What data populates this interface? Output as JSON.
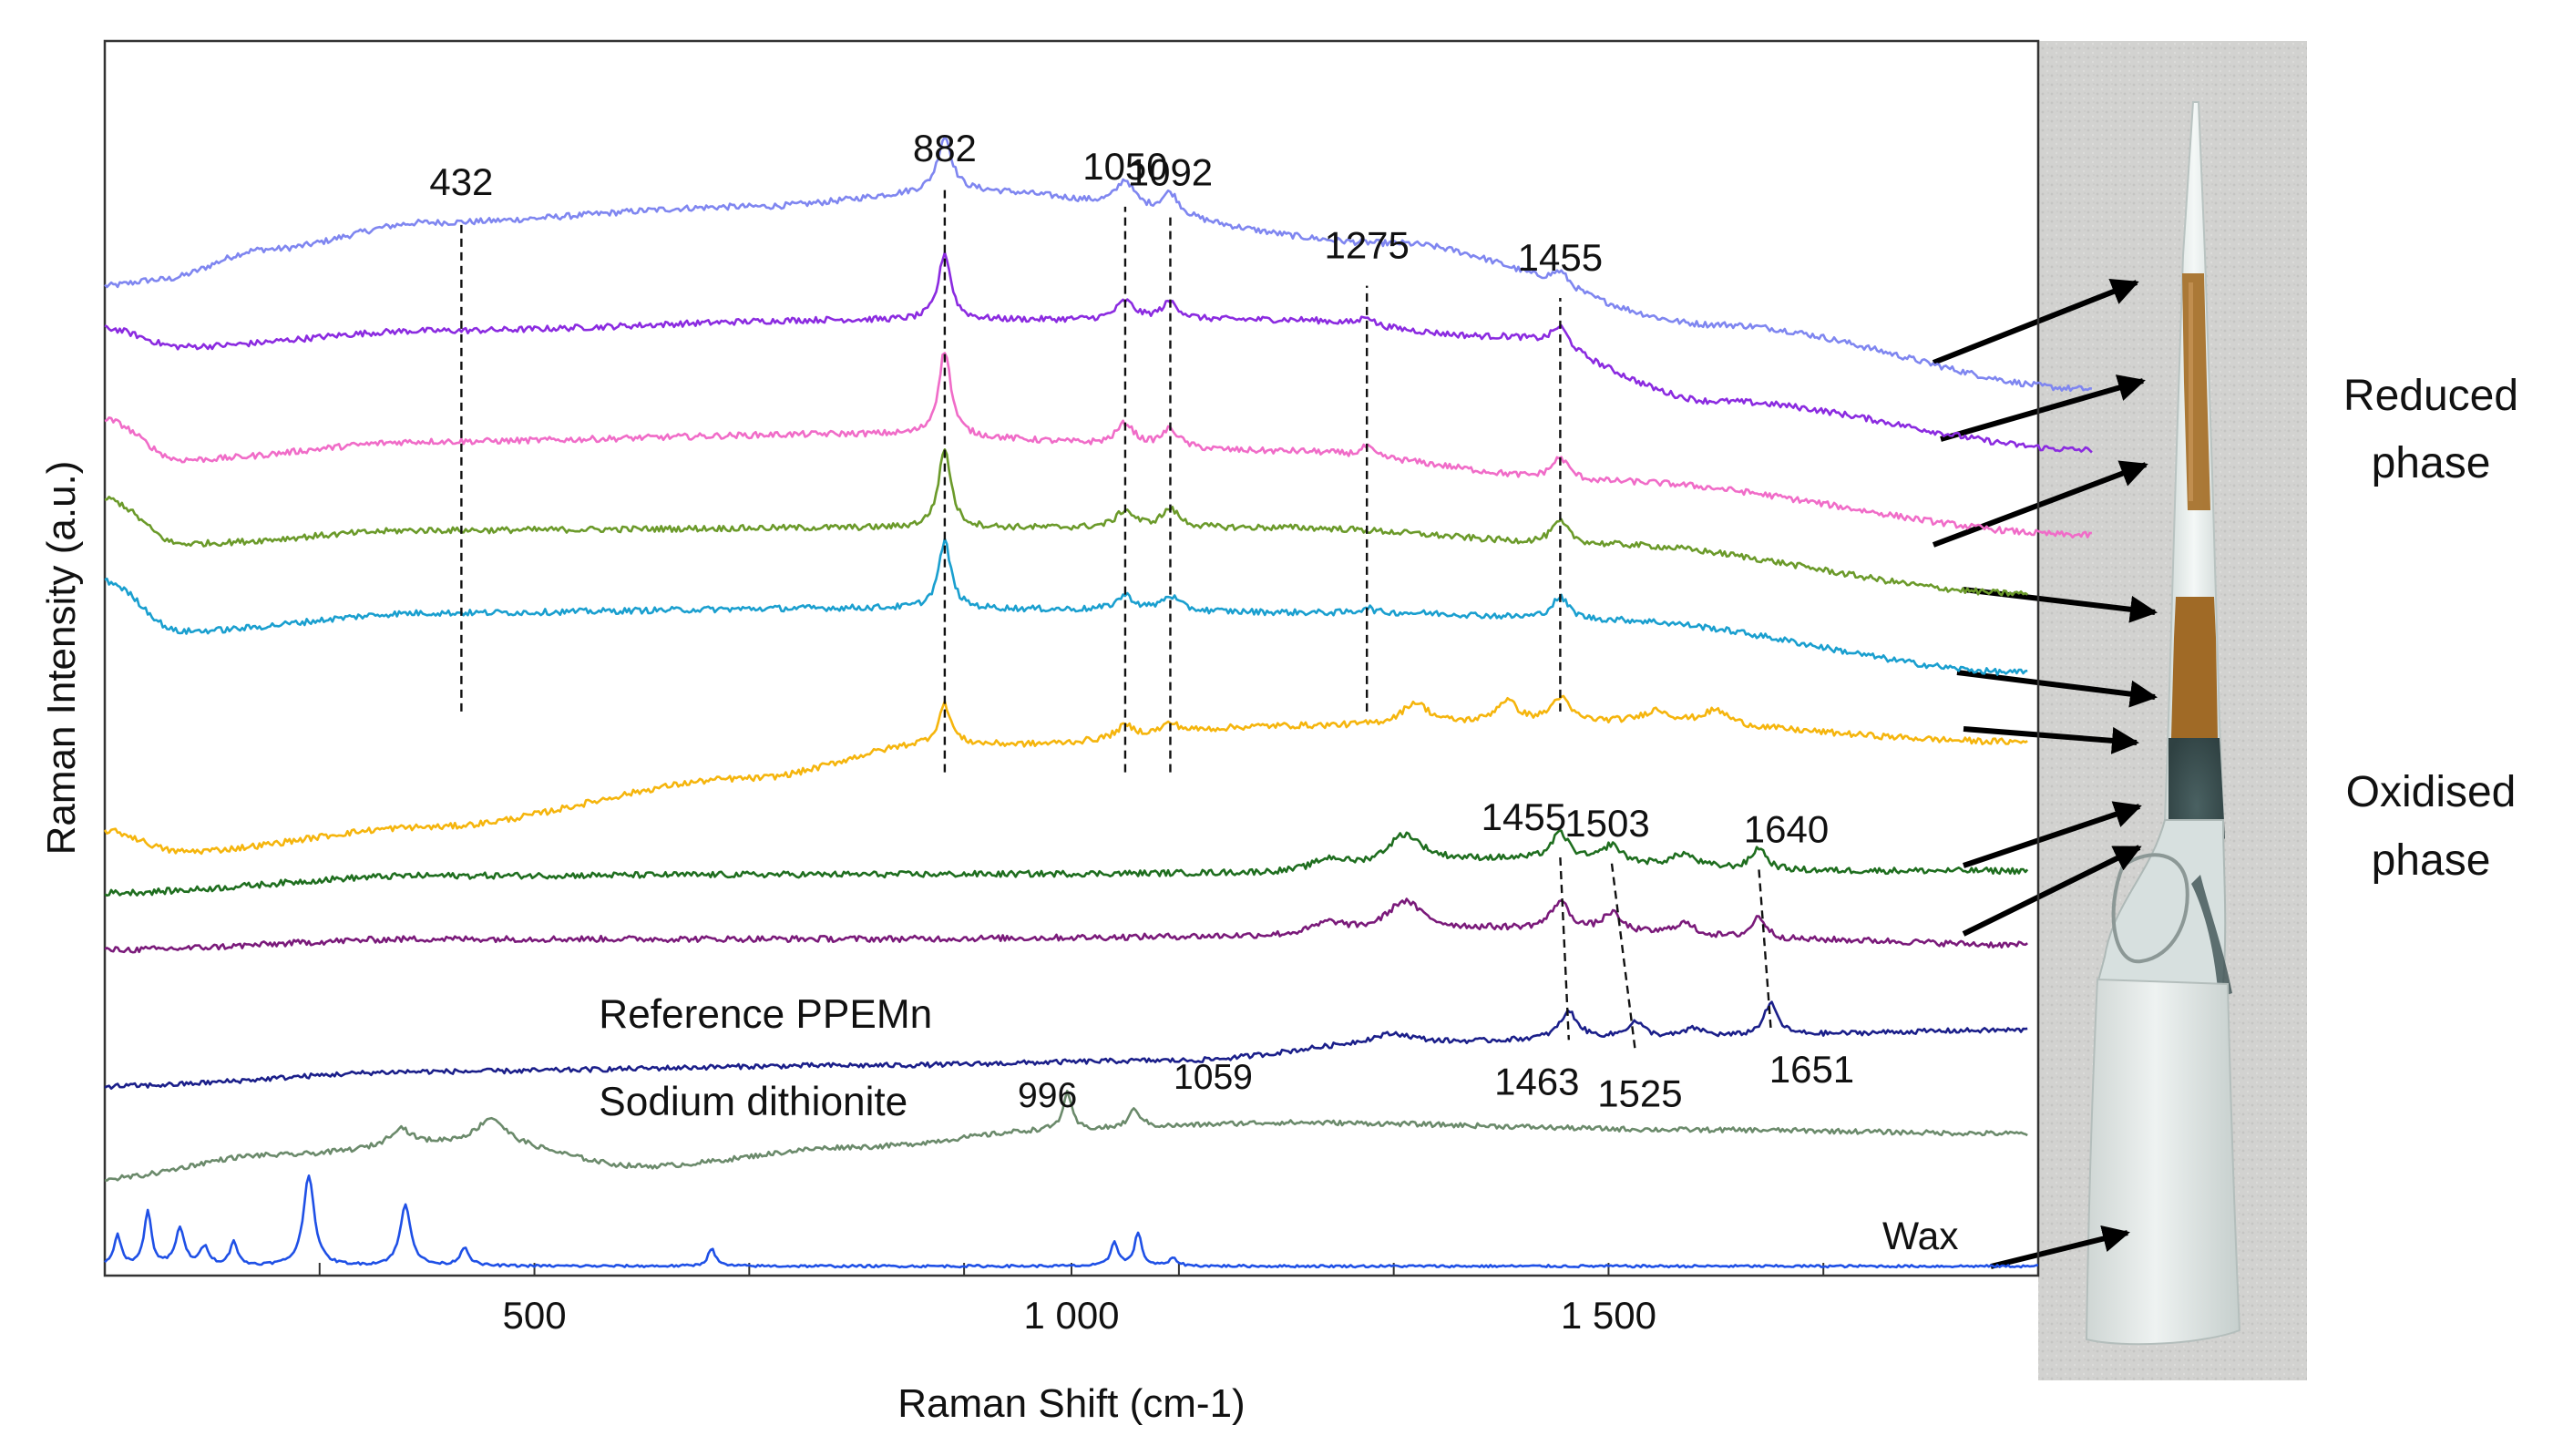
{
  "chart_data": {
    "type": "line",
    "title": "",
    "xlabel": "Raman Shift (cm-1)",
    "ylabel": "Raman Intensity (a.u.)",
    "xlim": [
      100,
      1900
    ],
    "ylim": [
      0,
      100
    ],
    "grid": false,
    "y_tick_labels": false,
    "x_ticks": [
      {
        "value": 300,
        "label": ""
      },
      {
        "value": 500,
        "label": "500"
      },
      {
        "value": 700,
        "label": ""
      },
      {
        "value": 900,
        "label": ""
      },
      {
        "value": 1000,
        "label": "1 000"
      },
      {
        "value": 1100,
        "label": ""
      },
      {
        "value": 1300,
        "label": ""
      },
      {
        "value": 1500,
        "label": "1 500"
      },
      {
        "value": 1700,
        "label": ""
      }
    ],
    "series": [
      {
        "name": "Reduced phase spectrum 1",
        "color": "#7f86f0",
        "range": [
          100,
          1950
        ],
        "baseline": [
          [
            100,
            81
          ],
          [
            150,
            81.5
          ],
          [
            250,
            84
          ],
          [
            400,
            86.2
          ],
          [
            700,
            87.5
          ],
          [
            900,
            88.8
          ],
          [
            1300,
            84.5
          ],
          [
            1600,
            77.8
          ],
          [
            1950,
            72.5
          ]
        ],
        "peaks": [
          [
            882,
            4.5,
            8
          ],
          [
            1050,
            2.2,
            10
          ],
          [
            1092,
            1.8,
            10
          ],
          [
            1455,
            1.2,
            10
          ]
        ],
        "noise": 0.25
      },
      {
        "name": "Reduced phase spectrum 2",
        "color": "#8b2be0",
        "range": [
          100,
          1950
        ],
        "baseline": [
          [
            100,
            77.5
          ],
          [
            170,
            76
          ],
          [
            400,
            77.3
          ],
          [
            800,
            78.2
          ],
          [
            1200,
            78.2
          ],
          [
            1400,
            76.8
          ],
          [
            1600,
            71.5
          ],
          [
            1950,
            67.5
          ]
        ],
        "peaks": [
          [
            882,
            5.5,
            7
          ],
          [
            1050,
            1.5,
            10
          ],
          [
            1092,
            1.4,
            10
          ],
          [
            1275,
            0.8,
            6
          ],
          [
            1455,
            1.8,
            10
          ]
        ],
        "noise": 0.25
      },
      {
        "name": "Reduced phase spectrum 3",
        "color": "#f06cc8",
        "range": [
          100,
          1950
        ],
        "baseline": [
          [
            100,
            70
          ],
          [
            170,
            66.7
          ],
          [
            400,
            68.2
          ],
          [
            800,
            68.8
          ],
          [
            1200,
            67.4
          ],
          [
            1500,
            64.9
          ],
          [
            1950,
            60.5
          ]
        ],
        "peaks": [
          [
            882,
            7,
            7
          ],
          [
            1050,
            1.8,
            10
          ],
          [
            1092,
            1.5,
            10
          ],
          [
            1275,
            0.8,
            6
          ],
          [
            1455,
            1.8,
            10
          ]
        ],
        "noise": 0.25
      },
      {
        "name": "Reduced phase spectrum 4",
        "color": "#6b9a2a",
        "range": [
          100,
          1890
        ],
        "baseline": [
          [
            100,
            63.5
          ],
          [
            170,
            59.8
          ],
          [
            400,
            60.9
          ],
          [
            800,
            61.1
          ],
          [
            1200,
            61.1
          ],
          [
            1500,
            59.7
          ],
          [
            1890,
            55.7
          ]
        ],
        "peaks": [
          [
            882,
            6.5,
            7
          ],
          [
            1050,
            1.4,
            10
          ],
          [
            1092,
            1.5,
            10
          ],
          [
            1455,
            1.8,
            10
          ]
        ],
        "noise": 0.25
      },
      {
        "name": "Reduced phase spectrum 5",
        "color": "#1a9fcf",
        "range": [
          100,
          1890
        ],
        "baseline": [
          [
            100,
            56.7
          ],
          [
            170,
            52.6
          ],
          [
            400,
            54.1
          ],
          [
            800,
            54.5
          ],
          [
            1300,
            54.1
          ],
          [
            1500,
            53.5
          ],
          [
            1890,
            49.2
          ]
        ],
        "peaks": [
          [
            882,
            5.5,
            7
          ],
          [
            1050,
            1.2,
            10
          ],
          [
            1092,
            1.2,
            10
          ],
          [
            1275,
            0.5,
            6
          ],
          [
            1455,
            1.8,
            10
          ]
        ],
        "noise": 0.25
      },
      {
        "name": "Oxidised phase spectrum 1",
        "color": "#f5b50d",
        "range": [
          100,
          1890
        ],
        "baseline": [
          [
            100,
            36.2
          ],
          [
            170,
            34.5
          ],
          [
            400,
            36.5
          ],
          [
            700,
            40.5
          ],
          [
            870,
            43.3
          ],
          [
            950,
            43.3
          ],
          [
            1200,
            44.8
          ],
          [
            1500,
            45.1
          ],
          [
            1890,
            43.5
          ]
        ],
        "peaks": [
          [
            882,
            3.3,
            7
          ],
          [
            1050,
            1.0,
            10
          ],
          [
            1092,
            0.8,
            10
          ],
          [
            1320,
            1.8,
            15
          ],
          [
            1405,
            1.8,
            12
          ],
          [
            1455,
            2.0,
            10
          ],
          [
            1545,
            1.0,
            15
          ],
          [
            1600,
            1.2,
            15
          ]
        ],
        "noise": 0.25
      },
      {
        "name": "Oxidised phase spectrum 2",
        "color": "#1f6e1f",
        "range": [
          100,
          1890
        ],
        "baseline": [
          [
            100,
            31.1
          ],
          [
            400,
            32.5
          ],
          [
            800,
            32.6
          ],
          [
            1200,
            32.7
          ],
          [
            1400,
            33.8
          ],
          [
            1700,
            32.9
          ],
          [
            1890,
            32.9
          ]
        ],
        "peaks": [
          [
            1240,
            1.0,
            20
          ],
          [
            1310,
            2.5,
            20
          ],
          [
            1455,
            2.2,
            10
          ],
          [
            1503,
            1.4,
            10
          ],
          [
            1570,
            1.0,
            12
          ],
          [
            1640,
            1.8,
            8
          ]
        ],
        "noise": 0.25
      },
      {
        "name": "Oxidised phase spectrum 3",
        "color": "#7a1a7a",
        "range": [
          100,
          1890
        ],
        "baseline": [
          [
            100,
            26.4
          ],
          [
            400,
            27.3
          ],
          [
            800,
            27.3
          ],
          [
            1200,
            27.5
          ],
          [
            1400,
            28.1
          ],
          [
            1700,
            27.2
          ],
          [
            1890,
            26.8
          ]
        ],
        "peaks": [
          [
            1240,
            1.0,
            20
          ],
          [
            1310,
            2.5,
            20
          ],
          [
            1455,
            2.3,
            10
          ],
          [
            1503,
            1.5,
            10
          ],
          [
            1570,
            1.0,
            12
          ],
          [
            1640,
            1.8,
            8
          ]
        ],
        "noise": 0.25
      },
      {
        "name": "Reference PPEMn",
        "color": "#1b1f8a",
        "range": [
          100,
          1890
        ],
        "baseline": [
          [
            100,
            15.2
          ],
          [
            400,
            16.4
          ],
          [
            800,
            16.9
          ],
          [
            1100,
            17.3
          ],
          [
            1300,
            18.7
          ],
          [
            1500,
            19.1
          ],
          [
            1890,
            19.8
          ]
        ],
        "peaks": [
          [
            1300,
            0.8,
            25
          ],
          [
            1463,
            2.2,
            10
          ],
          [
            1525,
            1.3,
            10
          ],
          [
            1580,
            0.7,
            12
          ],
          [
            1651,
            2.6,
            8
          ]
        ],
        "noise": 0.2
      },
      {
        "name": "Sodium dithionite",
        "color": "#6b8a6b",
        "range": [
          100,
          1890
        ],
        "baseline": [
          [
            100,
            7.6
          ],
          [
            250,
            9.5
          ],
          [
            450,
            10.6
          ],
          [
            600,
            8.6
          ],
          [
            800,
            10.2
          ],
          [
            990,
            11.6
          ],
          [
            1200,
            12.2
          ],
          [
            1600,
            11.6
          ],
          [
            1890,
            11.3
          ]
        ],
        "peaks": [
          [
            375,
            1.5,
            12
          ],
          [
            460,
            2.0,
            15
          ],
          [
            996,
            3.0,
            5
          ],
          [
            1059,
            1.5,
            7
          ]
        ],
        "noise": 0.2
      },
      {
        "name": "Wax",
        "color": "#1f50e6",
        "range": [
          100,
          1900
        ],
        "baseline": [
          [
            100,
            0.4
          ],
          [
            1900,
            0.4
          ]
        ],
        "peaks": [
          [
            112,
            2.5,
            4
          ],
          [
            140,
            4.5,
            4
          ],
          [
            170,
            3.0,
            5
          ],
          [
            193,
            1.5,
            5
          ],
          [
            220,
            2.0,
            4
          ],
          [
            290,
            7.5,
            6
          ],
          [
            380,
            5.0,
            6
          ],
          [
            435,
            1.5,
            5
          ],
          [
            665,
            1.5,
            4
          ],
          [
            1040,
            2.0,
            4
          ],
          [
            1062,
            2.7,
            4
          ],
          [
            1095,
            0.6,
            5
          ]
        ],
        "noise": 0.1
      }
    ],
    "reference_lines": [
      {
        "label": "432",
        "x": 432,
        "y_from": 46,
        "y_to": 86.2
      },
      {
        "label": "882",
        "x": 882,
        "y_from": 41,
        "y_to": 89
      },
      {
        "label": "1050",
        "x": 1050,
        "y_from": 41,
        "y_to": 87.5
      },
      {
        "label": "1092",
        "x": 1092,
        "y_from": 41,
        "y_to": 87
      },
      {
        "label": "1275",
        "x": 1275,
        "y_from": 46,
        "y_to": 81
      },
      {
        "label": "1455",
        "x": 1455,
        "y_from": 46,
        "y_to": 80
      }
    ],
    "shift_lines": [
      {
        "label_top": "1455",
        "label_bottom": "1463",
        "x_top": 1455,
        "x_bottom": 1463,
        "y_top": 34,
        "y_bottom": 19
      },
      {
        "label_top": "1503",
        "label_bottom": "1525",
        "x_top": 1503,
        "x_bottom": 1525,
        "y_top": 33.5,
        "y_bottom": 18
      },
      {
        "label_top": "1640",
        "label_bottom": "1651",
        "x_top": 1640,
        "x_bottom": 1651,
        "y_top": 33,
        "y_bottom": 20
      }
    ],
    "annotations": [
      {
        "text": "Reference PPEMn",
        "x": 560,
        "y": 20,
        "size": 26
      },
      {
        "text": "Sodium dithionite",
        "x": 560,
        "y": 12.8,
        "size": 26
      },
      {
        "text": "996",
        "x": 950,
        "y": 13.5,
        "size": 23
      },
      {
        "text": "1059",
        "x": 1095,
        "y": 15,
        "size": 23
      },
      {
        "text": "Wax",
        "x": 1755,
        "y": 1.8,
        "size": 25
      }
    ]
  },
  "photo": {
    "labels": {
      "reduced_line1": "Reduced",
      "reduced_line2": "phase",
      "oxidised_line1": "Oxidised",
      "oxidised_line2": "phase"
    },
    "colors": {
      "background": "#d2d2d0",
      "reduced_band": "#a7722c",
      "oxidised_band": "#3e5354",
      "glass": "#e9efee"
    }
  }
}
